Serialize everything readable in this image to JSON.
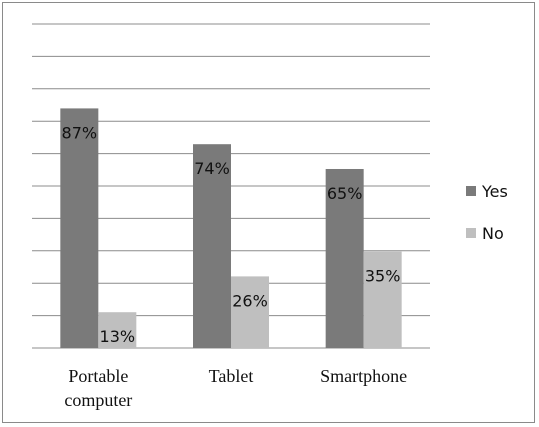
{
  "chart_data": {
    "type": "bar",
    "categories": [
      "Portable computer",
      "Tablet",
      "Smartphone"
    ],
    "category_lines": [
      [
        "Portable",
        "computer"
      ],
      [
        "Tablet"
      ],
      [
        "Smartphone"
      ]
    ],
    "series": [
      {
        "name": "Yes",
        "values": [
          87,
          74,
          65
        ],
        "labels": [
          "87%",
          "74%",
          "65%"
        ],
        "color": "#7a7a7a"
      },
      {
        "name": "No",
        "values": [
          13,
          26,
          35
        ],
        "labels": [
          "13%",
          "26%",
          "35%"
        ],
        "color": "#bfbfbf"
      }
    ],
    "ylim": [
      0,
      100
    ],
    "grid": true,
    "legend_position": "right",
    "title": "",
    "xlabel": "",
    "ylabel": ""
  }
}
